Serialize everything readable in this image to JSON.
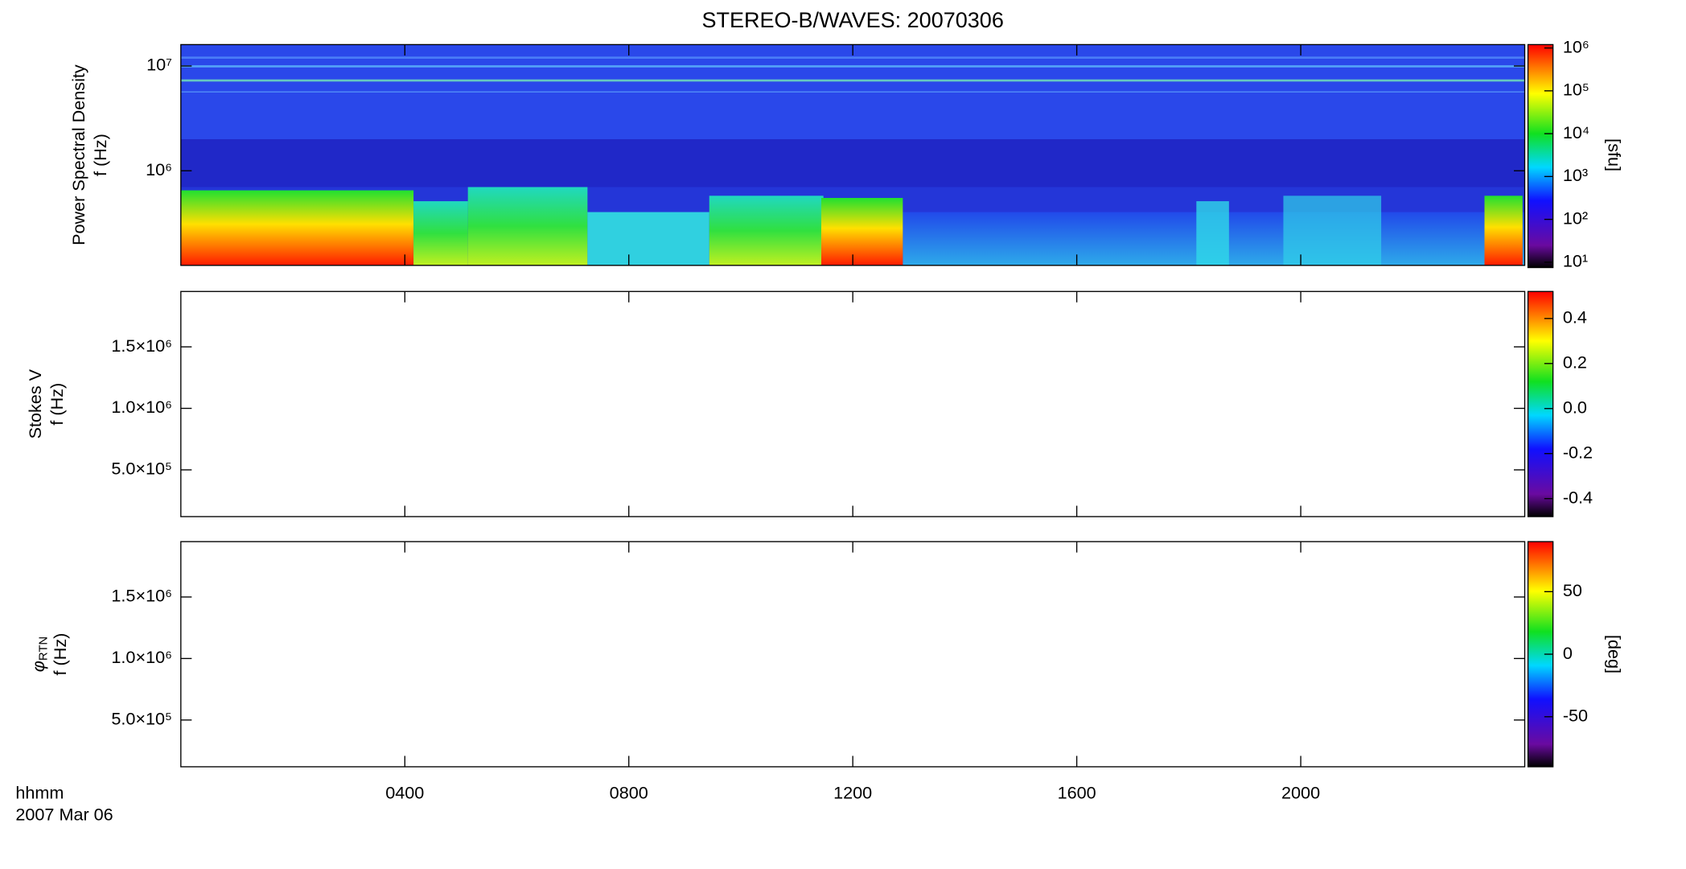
{
  "chart_data": [
    {
      "type": "heatmap",
      "title": "STEREO-B/WAVES: 20070306",
      "ylabel": {
        "name": "Power Spectral Density",
        "unit": "f (Hz)"
      },
      "ylog": true,
      "ylim": [
        125000,
        16000000
      ],
      "yticks": [
        {
          "value": 1000000,
          "label": "10⁶"
        },
        {
          "value": 10000000,
          "label": "10⁷"
        }
      ],
      "colorbar": {
        "label": "[sfu]",
        "log": true,
        "lim": [
          7.5,
          1200000
        ],
        "ticks": [
          {
            "value": 10,
            "label": "10¹"
          },
          {
            "value": 100,
            "label": "10²"
          },
          {
            "value": 1000,
            "label": "10³"
          },
          {
            "value": 10000,
            "label": "10⁴"
          },
          {
            "value": 100000,
            "label": "10⁵"
          },
          {
            "value": 1000000,
            "label": "10⁶"
          }
        ]
      }
    },
    {
      "type": "heatmap",
      "ylabel": {
        "name": "Stokes V",
        "unit": "f (Hz)"
      },
      "ylog": false,
      "ylim": [
        120000,
        1950000
      ],
      "yticks": [
        {
          "value": 500000,
          "label": "5.0×10⁵"
        },
        {
          "value": 1000000,
          "label": "1.0×10⁶"
        },
        {
          "value": 1500000,
          "label": "1.5×10⁶"
        }
      ],
      "colorbar": {
        "label": "",
        "log": false,
        "lim": [
          -0.48,
          0.52
        ],
        "ticks": [
          -0.4,
          -0.2,
          {
            "value": 0,
            "label": "0.0"
          },
          0.2,
          0.4
        ]
      }
    },
    {
      "type": "heatmap",
      "ylabel": {
        "name": "φ",
        "subscript": "RTN",
        "unit": "f (Hz)"
      },
      "ylog": false,
      "ylim": [
        120000,
        1950000
      ],
      "yticks": [
        {
          "value": 500000,
          "label": "5.0×10⁵"
        },
        {
          "value": 1000000,
          "label": "1.0×10⁶"
        },
        {
          "value": 1500000,
          "label": "1.5×10⁶"
        }
      ],
      "colorbar": {
        "label": "[deg]",
        "log": false,
        "lim": [
          -90,
          90
        ],
        "ticks": [
          -50,
          0,
          50
        ]
      },
      "xlim": [
        0,
        24
      ],
      "xticks": [
        {
          "value": 4,
          "label": "0400"
        },
        {
          "value": 8,
          "label": "0800"
        },
        {
          "value": 12,
          "label": "1200"
        },
        {
          "value": 16,
          "label": "1600"
        },
        {
          "value": 20,
          "label": "2000"
        }
      ],
      "xlabel": [
        "hhmm",
        "2007 Mar 06"
      ]
    }
  ]
}
